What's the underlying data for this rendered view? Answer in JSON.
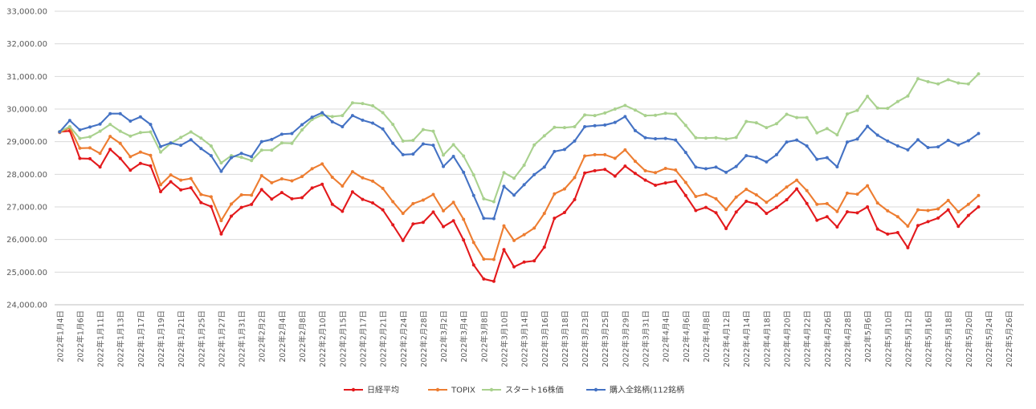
{
  "chart_data": {
    "type": "line",
    "title": "",
    "xlabel": "",
    "ylabel": "",
    "ylim": [
      24000,
      33000
    ],
    "y_ticks": [
      "24,000.00",
      "25,000.00",
      "26,000.00",
      "27,000.00",
      "28,000.00",
      "29,000.00",
      "30,000.00",
      "31,000.00",
      "32,000.00",
      "33,000.00"
    ],
    "grid": "horizontal",
    "legend_position": "bottom",
    "x_tick_labels": [
      "2022年1月4日",
      "2022年1月6日",
      "2022年1月11日",
      "2022年1月13日",
      "2022年1月17日",
      "2022年1月19日",
      "2022年1月21日",
      "2022年1月25日",
      "2022年1月27日",
      "2022年1月31日",
      "2022年2月2日",
      "2022年2月4日",
      "2022年2月8日",
      "2022年2月10日",
      "2022年2月15日",
      "2022年2月17日",
      "2022年2月21日",
      "2022年2月24日",
      "2022年2月28日",
      "2022年3月2日",
      "2022年3月4日",
      "2022年3月8日",
      "2022年3月10日",
      "2022年3月14日",
      "2022年3月16日",
      "2022年3月18日",
      "2022年3月23日",
      "2022年3月25日",
      "2022年3月29日",
      "2022年3月31日",
      "2022年4月4日",
      "2022年4月6日",
      "2022年4月8日",
      "2022年4月12日",
      "2022年4月14日",
      "2022年4月18日",
      "2022年4月20日",
      "2022年4月22日",
      "2022年4月26日",
      "2022年4月28日",
      "2022年5月6日",
      "2022年5月10日",
      "2022年5月12日",
      "2022年5月16日",
      "2022年5月18日",
      "2022年5月20日",
      "2022年5月24日",
      "2022年5月26日"
    ],
    "n_points": 96,
    "series": [
      {
        "name": "日経平均",
        "color": "#e3191c",
        "values": [
          29301,
          29332,
          28487,
          28478,
          28222,
          28765,
          28489,
          28124,
          28333,
          28257,
          27467,
          27772,
          27522,
          27588,
          27131,
          27011,
          26170,
          26717,
          26986,
          27078,
          27533,
          27241,
          27440,
          27249,
          27284,
          27580,
          27696,
          27080,
          26865,
          27460,
          27232,
          27122,
          26910,
          26449,
          25970,
          26476,
          26527,
          26844,
          26393,
          26577,
          25985,
          25221,
          24791,
          24718,
          25690,
          25162,
          25308,
          25346,
          25763,
          26653,
          26827,
          27224,
          28040,
          28111,
          28149,
          27943,
          28252,
          28027,
          27821,
          27665,
          27736,
          27787,
          27350,
          26889,
          26986,
          26822,
          26335,
          26843,
          27172,
          27093,
          26800,
          26985,
          27218,
          27553,
          27105,
          26591,
          26700,
          26386,
          26848,
          26818,
          26999,
          26320,
          26167,
          26214,
          25748,
          26428,
          26547,
          26659,
          26911,
          26403,
          26739,
          27001,
          null,
          null,
          null,
          null
        ]
      },
      {
        "name": "TOPIX",
        "color": "#ed7d31",
        "values": [
          29280,
          29430,
          28800,
          28810,
          28640,
          29160,
          28950,
          28540,
          28680,
          28580,
          27680,
          27980,
          27820,
          27870,
          27380,
          27310,
          26580,
          27090,
          27370,
          27360,
          27960,
          27740,
          27860,
          27800,
          27930,
          28170,
          28320,
          27910,
          27640,
          28080,
          27890,
          27790,
          27570,
          27160,
          26800,
          27100,
          27210,
          27380,
          26880,
          27140,
          26620,
          25910,
          25400,
          25390,
          26420,
          25970,
          26150,
          26350,
          26800,
          27400,
          27550,
          27900,
          28560,
          28600,
          28600,
          28490,
          28750,
          28400,
          28110,
          28050,
          28180,
          28130,
          27750,
          27320,
          27390,
          27250,
          26920,
          27300,
          27540,
          27370,
          27140,
          27360,
          27610,
          27820,
          27500,
          27080,
          27100,
          26860,
          27420,
          27390,
          27650,
          27120,
          26880,
          26700,
          26410,
          26910,
          26890,
          26940,
          27200,
          26850,
          27080,
          27350,
          null,
          null,
          null,
          null
        ]
      },
      {
        "name": "スタート16株価",
        "color": "#a9d18e",
        "values": [
          29310,
          29460,
          29100,
          29150,
          29320,
          29530,
          29320,
          29170,
          29280,
          29300,
          28680,
          28950,
          29130,
          29300,
          29110,
          28870,
          28350,
          28570,
          28520,
          28420,
          28740,
          28740,
          28960,
          28950,
          29360,
          29680,
          29820,
          29770,
          29800,
          30190,
          30170,
          30100,
          29890,
          29530,
          29020,
          29040,
          29370,
          29320,
          28590,
          28910,
          28560,
          27980,
          27250,
          27160,
          28050,
          27880,
          28280,
          28900,
          29180,
          29440,
          29430,
          29460,
          29820,
          29800,
          29880,
          30000,
          30110,
          29970,
          29800,
          29810,
          29870,
          29850,
          29500,
          29120,
          29110,
          29120,
          29080,
          29130,
          29620,
          29580,
          29430,
          29550,
          29840,
          29740,
          29740,
          29270,
          29400,
          29210,
          29850,
          29960,
          30390,
          30030,
          30020,
          30230,
          30400,
          30930,
          30840,
          30770,
          30900,
          30800,
          30770,
          31080,
          null,
          null,
          null,
          null
        ]
      },
      {
        "name": "購入全銘柄(112銘柄",
        "color": "#4472c4",
        "values": [
          29300,
          29650,
          29360,
          29450,
          29540,
          29860,
          29860,
          29630,
          29760,
          29530,
          28850,
          28960,
          28890,
          29060,
          28790,
          28570,
          28090,
          28510,
          28640,
          28540,
          29000,
          29070,
          29230,
          29250,
          29520,
          29750,
          29890,
          29610,
          29460,
          29800,
          29660,
          29570,
          29390,
          28950,
          28600,
          28620,
          28930,
          28890,
          28240,
          28550,
          28060,
          27350,
          26650,
          26640,
          27630,
          27360,
          27680,
          27990,
          28220,
          28700,
          28760,
          29020,
          29460,
          29490,
          29510,
          29590,
          29770,
          29340,
          29120,
          29090,
          29100,
          29050,
          28670,
          28220,
          28170,
          28220,
          28060,
          28240,
          28570,
          28520,
          28380,
          28600,
          28990,
          29050,
          28870,
          28460,
          28510,
          28230,
          28990,
          29080,
          29470,
          29200,
          29020,
          28870,
          28750,
          29060,
          28820,
          28840,
          29040,
          28900,
          29030,
          29250,
          null,
          null,
          null,
          null
        ]
      }
    ]
  }
}
